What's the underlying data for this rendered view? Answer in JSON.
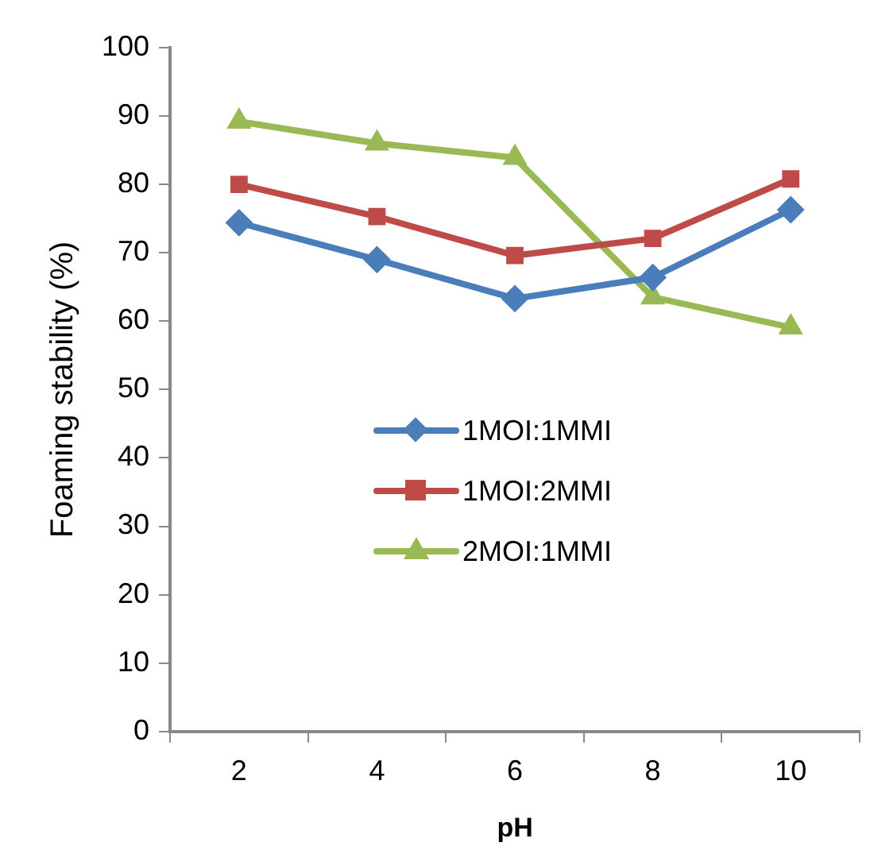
{
  "chart_data": {
    "type": "line",
    "xlabel": "pH",
    "ylabel": "Foaming stability (%)",
    "categories": [
      "2",
      "4",
      "6",
      "8",
      "10"
    ],
    "series": [
      {
        "name": "1MOI:1MMI",
        "color": "#4a7ebb",
        "marker": "diamond",
        "values": [
          74.4,
          69.0,
          63.3,
          66.4,
          76.3
        ]
      },
      {
        "name": "1MOI:2MMI",
        "color": "#be4b48",
        "marker": "square",
        "values": [
          80.0,
          75.3,
          69.6,
          72.1,
          80.8
        ]
      },
      {
        "name": "2MOI:1MMI",
        "color": "#98b954",
        "marker": "triangle",
        "values": [
          89.2,
          86.0,
          83.9,
          63.5,
          59.1
        ]
      }
    ],
    "ylim": [
      0,
      100
    ],
    "yticks": [
      0,
      10,
      20,
      30,
      40,
      50,
      60,
      70,
      80,
      90,
      100
    ],
    "grid": false,
    "legend": "center",
    "line_style": "solid"
  }
}
